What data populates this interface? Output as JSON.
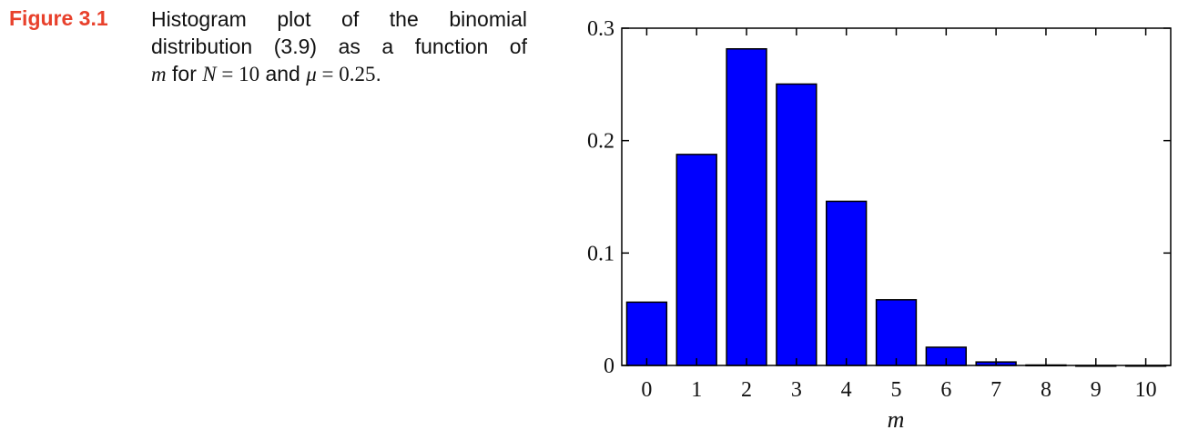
{
  "caption": {
    "label": "Figure 3.1",
    "line1": "Histogram plot of the binomial",
    "line2": "distribution (3.9) as a function of",
    "line3_m": "m",
    "line3_for": " for ",
    "line3_N": "N",
    "line3_eq1": " = 10",
    "line3_and": " and ",
    "line3_mu": "μ",
    "line3_eq2": " = 0.25",
    "line3_end": "."
  },
  "chart_data": {
    "type": "bar",
    "categories": [
      "0",
      "1",
      "2",
      "3",
      "4",
      "5",
      "6",
      "7",
      "8",
      "9",
      "10"
    ],
    "values": [
      0.0563,
      0.1877,
      0.2816,
      0.2503,
      0.146,
      0.0584,
      0.0162,
      0.0031,
      0.0004,
      0.0,
      0.0
    ],
    "title": "",
    "xlabel": "m",
    "ylabel": "",
    "ylim": [
      0,
      0.3
    ],
    "yticks": [
      "0",
      "0.1",
      "0.2",
      "0.3"
    ],
    "grid": false,
    "colors": {
      "bar_fill": "#0000ff",
      "bar_stroke": "#000000"
    }
  }
}
